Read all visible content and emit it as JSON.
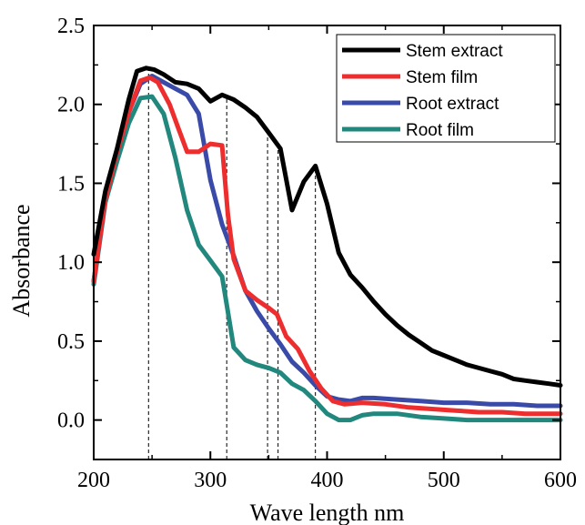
{
  "chart_data": {
    "type": "line",
    "xlabel": "Wave length nm",
    "ylabel": "Absorbance",
    "xlim": [
      200,
      600
    ],
    "ylim": [
      -0.25,
      2.5
    ],
    "xticks": [
      200,
      300,
      400,
      500,
      600
    ],
    "yticks": [
      0.0,
      0.5,
      1.0,
      1.5,
      2.0,
      2.5
    ],
    "xtick_labels": [
      "200",
      "300",
      "400",
      "500",
      "600"
    ],
    "ytick_labels": [
      "0.0",
      "0.5",
      "1.0",
      "1.5",
      "2.0",
      "2.5"
    ],
    "grid": false,
    "legend_position": "top-right",
    "reference_lines_x": [
      247,
      314,
      349,
      358,
      390
    ],
    "series": [
      {
        "name": "Stem extract",
        "color": "#000000",
        "points": [
          [
            200,
            1.05
          ],
          [
            210,
            1.45
          ],
          [
            220,
            1.72
          ],
          [
            230,
            2.03
          ],
          [
            237,
            2.21
          ],
          [
            245,
            2.23
          ],
          [
            252,
            2.22
          ],
          [
            260,
            2.19
          ],
          [
            270,
            2.14
          ],
          [
            280,
            2.13
          ],
          [
            290,
            2.1
          ],
          [
            300,
            2.02
          ],
          [
            310,
            2.06
          ],
          [
            320,
            2.03
          ],
          [
            330,
            1.98
          ],
          [
            340,
            1.92
          ],
          [
            350,
            1.82
          ],
          [
            360,
            1.72
          ],
          [
            370,
            1.33
          ],
          [
            380,
            1.51
          ],
          [
            390,
            1.61
          ],
          [
            400,
            1.37
          ],
          [
            410,
            1.06
          ],
          [
            420,
            0.92
          ],
          [
            430,
            0.84
          ],
          [
            440,
            0.75
          ],
          [
            450,
            0.67
          ],
          [
            460,
            0.6
          ],
          [
            470,
            0.54
          ],
          [
            480,
            0.49
          ],
          [
            490,
            0.44
          ],
          [
            500,
            0.41
          ],
          [
            510,
            0.38
          ],
          [
            520,
            0.35
          ],
          [
            530,
            0.33
          ],
          [
            540,
            0.31
          ],
          [
            550,
            0.29
          ],
          [
            560,
            0.26
          ],
          [
            570,
            0.25
          ],
          [
            580,
            0.24
          ],
          [
            590,
            0.23
          ],
          [
            600,
            0.22
          ]
        ]
      },
      {
        "name": "Stem film",
        "color": "#ee2e2e",
        "points": [
          [
            200,
            0.88
          ],
          [
            210,
            1.4
          ],
          [
            220,
            1.7
          ],
          [
            230,
            1.95
          ],
          [
            240,
            2.15
          ],
          [
            248,
            2.17
          ],
          [
            255,
            2.14
          ],
          [
            265,
            2.0
          ],
          [
            272,
            1.86
          ],
          [
            280,
            1.7
          ],
          [
            290,
            1.7
          ],
          [
            300,
            1.75
          ],
          [
            310,
            1.74
          ],
          [
            315,
            1.3
          ],
          [
            320,
            1.02
          ],
          [
            330,
            0.82
          ],
          [
            340,
            0.76
          ],
          [
            350,
            0.71
          ],
          [
            357,
            0.67
          ],
          [
            365,
            0.53
          ],
          [
            375,
            0.45
          ],
          [
            385,
            0.31
          ],
          [
            395,
            0.2
          ],
          [
            405,
            0.12
          ],
          [
            415,
            0.1
          ],
          [
            430,
            0.11
          ],
          [
            450,
            0.1
          ],
          [
            470,
            0.08
          ],
          [
            490,
            0.07
          ],
          [
            510,
            0.06
          ],
          [
            530,
            0.05
          ],
          [
            550,
            0.05
          ],
          [
            570,
            0.04
          ],
          [
            600,
            0.04
          ]
        ]
      },
      {
        "name": "Root extract",
        "color": "#3a4aa8",
        "points": [
          [
            200,
            0.88
          ],
          [
            210,
            1.4
          ],
          [
            220,
            1.7
          ],
          [
            230,
            1.95
          ],
          [
            240,
            2.13
          ],
          [
            250,
            2.18
          ],
          [
            260,
            2.14
          ],
          [
            270,
            2.1
          ],
          [
            280,
            2.06
          ],
          [
            290,
            1.94
          ],
          [
            300,
            1.52
          ],
          [
            310,
            1.24
          ],
          [
            320,
            1.04
          ],
          [
            330,
            0.82
          ],
          [
            340,
            0.69
          ],
          [
            350,
            0.58
          ],
          [
            360,
            0.48
          ],
          [
            370,
            0.37
          ],
          [
            380,
            0.3
          ],
          [
            390,
            0.22
          ],
          [
            400,
            0.15
          ],
          [
            410,
            0.13
          ],
          [
            420,
            0.12
          ],
          [
            430,
            0.14
          ],
          [
            440,
            0.14
          ],
          [
            460,
            0.13
          ],
          [
            480,
            0.12
          ],
          [
            500,
            0.11
          ],
          [
            520,
            0.11
          ],
          [
            540,
            0.1
          ],
          [
            560,
            0.1
          ],
          [
            580,
            0.09
          ],
          [
            600,
            0.09
          ]
        ]
      },
      {
        "name": "Root film",
        "color": "#22887e",
        "points": [
          [
            200,
            0.86
          ],
          [
            210,
            1.38
          ],
          [
            220,
            1.64
          ],
          [
            230,
            1.88
          ],
          [
            240,
            2.04
          ],
          [
            250,
            2.05
          ],
          [
            260,
            1.94
          ],
          [
            270,
            1.66
          ],
          [
            280,
            1.33
          ],
          [
            290,
            1.11
          ],
          [
            300,
            1.01
          ],
          [
            310,
            0.91
          ],
          [
            320,
            0.46
          ],
          [
            330,
            0.38
          ],
          [
            340,
            0.35
          ],
          [
            350,
            0.33
          ],
          [
            360,
            0.3
          ],
          [
            370,
            0.23
          ],
          [
            380,
            0.19
          ],
          [
            390,
            0.12
          ],
          [
            400,
            0.04
          ],
          [
            410,
            0.0
          ],
          [
            420,
            0.0
          ],
          [
            430,
            0.03
          ],
          [
            440,
            0.04
          ],
          [
            460,
            0.04
          ],
          [
            480,
            0.02
          ],
          [
            500,
            0.01
          ],
          [
            520,
            0.0
          ],
          [
            560,
            0.0
          ],
          [
            600,
            0.0
          ]
        ]
      }
    ]
  }
}
